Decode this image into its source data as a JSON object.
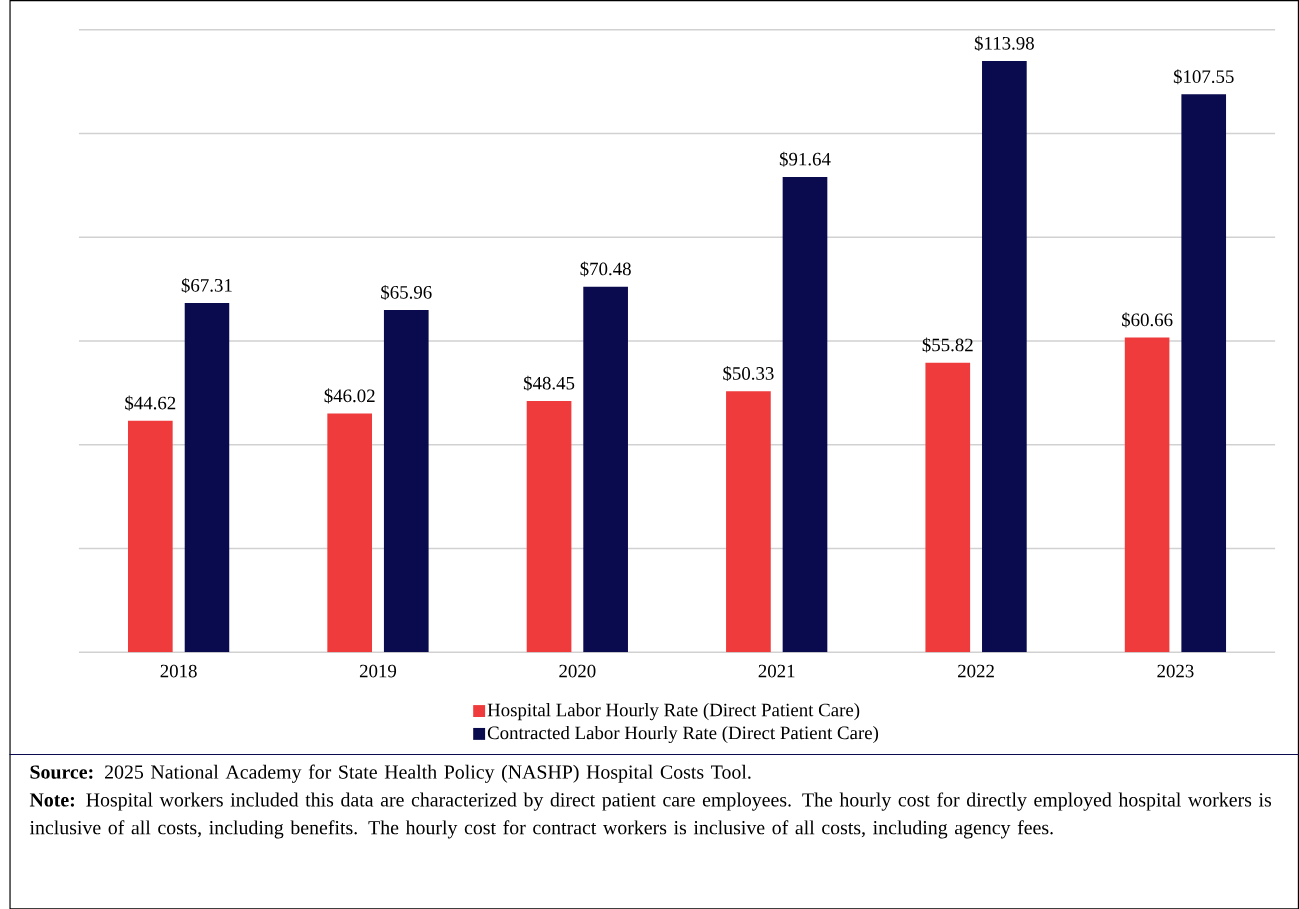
{
  "chart_data": {
    "type": "bar",
    "categories": [
      "2018",
      "2019",
      "2020",
      "2021",
      "2022",
      "2023"
    ],
    "series": [
      {
        "name": "Hospital Labor Hourly Rate (Direct Patient Care)",
        "color": "#ef3b3b",
        "values": [
          44.62,
          46.02,
          48.45,
          50.33,
          55.82,
          60.66
        ],
        "value_labels": [
          "$44.62",
          "$46.02",
          "$48.45",
          "$50.33",
          "$55.82",
          "$60.66"
        ]
      },
      {
        "name": "Contracted Labor Hourly Rate (Direct Patient Care)",
        "color": "#0a0a4e",
        "values": [
          67.31,
          65.96,
          70.48,
          91.64,
          113.98,
          107.55
        ],
        "value_labels": [
          "$67.31",
          "$65.96",
          "$70.48",
          "$91.64",
          "$113.98",
          "$107.55"
        ]
      }
    ],
    "ylim": [
      0,
      120
    ],
    "yticks": [
      {
        "value": 0,
        "label": null
      },
      {
        "value": 20,
        "label": null
      },
      {
        "value": 40,
        "label": null
      },
      {
        "value": 60,
        "label": null
      },
      {
        "value": 80,
        "label": null
      },
      {
        "value": 100,
        "label": null
      },
      {
        "value": 120,
        "label": null
      }
    ],
    "tick_labels": "x",
    "grid": "y",
    "legend": "bottom",
    "annotations": [
      "**Source:** 2025 National Academy for State Health Policy (NASHP) Hospital Costs Tool.",
      "**Note:** Hospital workers included this data are characterized by direct patient care employees. The hourly cost for directly employed hospital workers is inclusive of all costs, including benefits.  The hourly cost for contract workers is inclusive of all costs, including agency fees."
    ]
  }
}
